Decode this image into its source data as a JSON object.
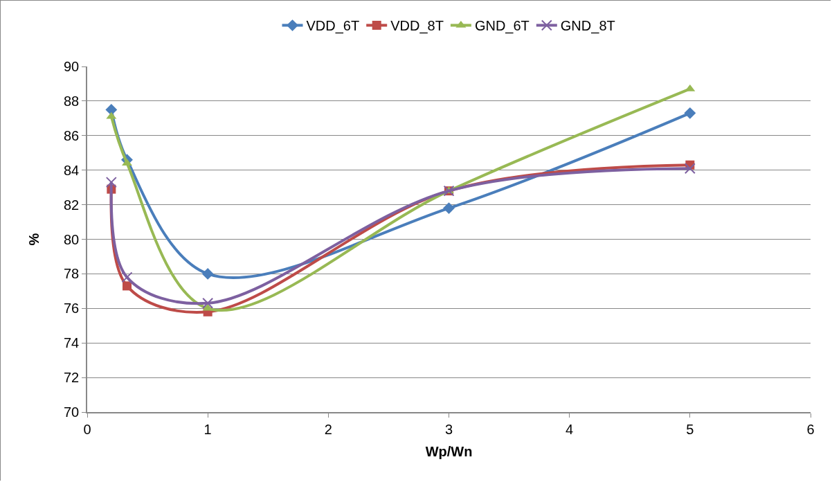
{
  "chart_data": {
    "type": "line",
    "xlabel": "Wp/Wn",
    "ylabel": "%",
    "x": [
      0.2,
      0.33,
      1,
      3,
      5
    ],
    "series": [
      {
        "name": "VDD_6T",
        "color": "#4a7ebb",
        "marker": "diamond",
        "values": [
          87.5,
          84.6,
          78.0,
          81.8,
          87.3
        ]
      },
      {
        "name": "VDD_8T",
        "color": "#be4b48",
        "marker": "square",
        "values": [
          82.9,
          77.3,
          75.8,
          82.8,
          84.3
        ]
      },
      {
        "name": "GND_6T",
        "color": "#98b954",
        "marker": "triangle",
        "values": [
          87.1,
          84.4,
          76.0,
          82.8,
          88.7
        ]
      },
      {
        "name": "GND_8T",
        "color": "#7d60a0",
        "marker": "cross",
        "values": [
          83.3,
          77.8,
          76.3,
          82.8,
          84.1
        ]
      }
    ],
    "xlim": [
      0,
      6
    ],
    "xticks": [
      0,
      1,
      2,
      3,
      4,
      5,
      6
    ],
    "ylim": [
      70,
      90
    ],
    "yticks": [
      70,
      72,
      74,
      76,
      78,
      80,
      82,
      84,
      86,
      88,
      90
    ],
    "grid": "y",
    "legend": "top",
    "line_style": "solid"
  }
}
